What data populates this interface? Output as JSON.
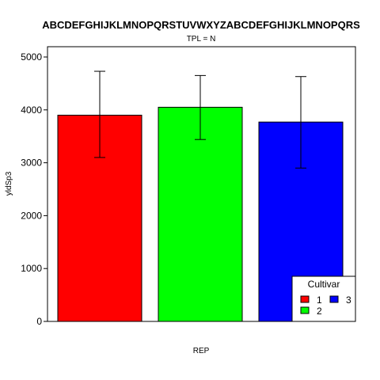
{
  "chart_data": {
    "type": "bar",
    "title": "ABCDEFGHIJKLMNOPQRSTUVWXYZABCDEFGHIJKLMNOPQRS",
    "subtitle": "TPL = N",
    "xlabel": "REP",
    "ylabel": "yldSp3",
    "ylim": [
      0,
      5200
    ],
    "yticks": [
      "0",
      "1000",
      "2000",
      "3000",
      "4000",
      "5000"
    ],
    "grid": false,
    "legend_position": "bottom-right",
    "legend_title": "Cultivar",
    "series": [
      {
        "name": "1",
        "value": 3900,
        "error_low": 3100,
        "error_high": 4730,
        "color": "#ff0000"
      },
      {
        "name": "2",
        "value": 4050,
        "error_low": 3440,
        "error_high": 4650,
        "color": "#00ff00"
      },
      {
        "name": "3",
        "value": 3770,
        "error_low": 2900,
        "error_high": 4630,
        "color": "#0000ff"
      }
    ]
  }
}
